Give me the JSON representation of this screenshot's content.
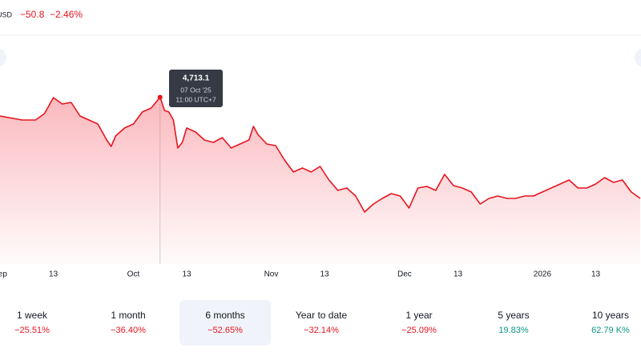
{
  "header": {
    "symbol": "USD",
    "change": "−50.8",
    "change_pct": "−2.46%"
  },
  "chart_data": {
    "type": "area",
    "x": [
      0,
      5,
      8,
      10,
      12,
      14,
      16,
      18,
      20,
      22,
      24,
      25,
      26,
      28,
      30,
      32,
      34,
      36,
      37,
      38,
      39,
      40,
      41,
      42,
      44,
      46,
      48,
      50,
      52,
      54,
      56,
      57,
      58,
      60,
      62,
      64,
      66,
      68,
      70,
      72,
      74,
      76,
      78,
      80,
      82,
      84,
      86,
      88,
      90,
      92,
      94,
      96,
      98,
      100,
      102,
      104,
      106,
      108,
      110,
      112,
      114,
      116,
      118,
      120,
      122,
      124,
      126,
      128,
      130,
      132,
      134,
      136,
      138,
      140,
      142,
      144
    ],
    "values": [
      4209,
      4102,
      4102,
      4273,
      4701,
      4530,
      4573,
      4209,
      4102,
      3995,
      3567,
      3396,
      3674,
      3888,
      3995,
      4316,
      4423,
      4713.1,
      4359,
      4316,
      4102,
      3353,
      3503,
      3888,
      3781,
      3567,
      3503,
      3631,
      3353,
      3460,
      3567,
      3931,
      3717,
      3460,
      3417,
      3032,
      2711,
      2818,
      2711,
      2861,
      2497,
      2219,
      2283,
      2069,
      1641,
      1855,
      2005,
      2133,
      2069,
      1748,
      2283,
      2326,
      2219,
      2647,
      2347,
      2283,
      2176,
      1855,
      2005,
      2069,
      2005,
      2005,
      2069,
      2069,
      2176,
      2283,
      2390,
      2497,
      2283,
      2283,
      2390,
      2561,
      2433,
      2497,
      2176,
      2005
    ],
    "color": "#e8141e",
    "xlim": [
      0,
      144
    ],
    "ylim": [
      250,
      6350
    ],
    "xticks": [
      {
        "value": 0,
        "label": "Sep"
      },
      {
        "value": 12,
        "label": "13"
      },
      {
        "value": 30,
        "label": "Oct"
      },
      {
        "value": 42,
        "label": "13"
      },
      {
        "value": 61,
        "label": "Nov"
      },
      {
        "value": 73,
        "label": "13"
      },
      {
        "value": 91,
        "label": "Dec"
      },
      {
        "value": 103,
        "label": "13"
      },
      {
        "value": 122,
        "label": "2026"
      },
      {
        "value": 134,
        "label": "13"
      }
    ],
    "tooltip": {
      "x": 36,
      "value": 4713.1,
      "label": "4,713.1",
      "date": "07 Oct '25",
      "time": "11:00 UTC+7"
    }
  },
  "periods": [
    {
      "label": "1 week",
      "change": "−25.51%"
    },
    {
      "label": "1 month",
      "change": "−36.40%"
    },
    {
      "label": "6 months",
      "change": "−52.65%"
    },
    {
      "label": "Year to date",
      "change": "−32.14%"
    },
    {
      "label": "1 year",
      "change": "−25.09%"
    },
    {
      "label": "5 years",
      "change": "19.83%"
    },
    {
      "label": "10 years",
      "change": "62.79 K%"
    }
  ]
}
